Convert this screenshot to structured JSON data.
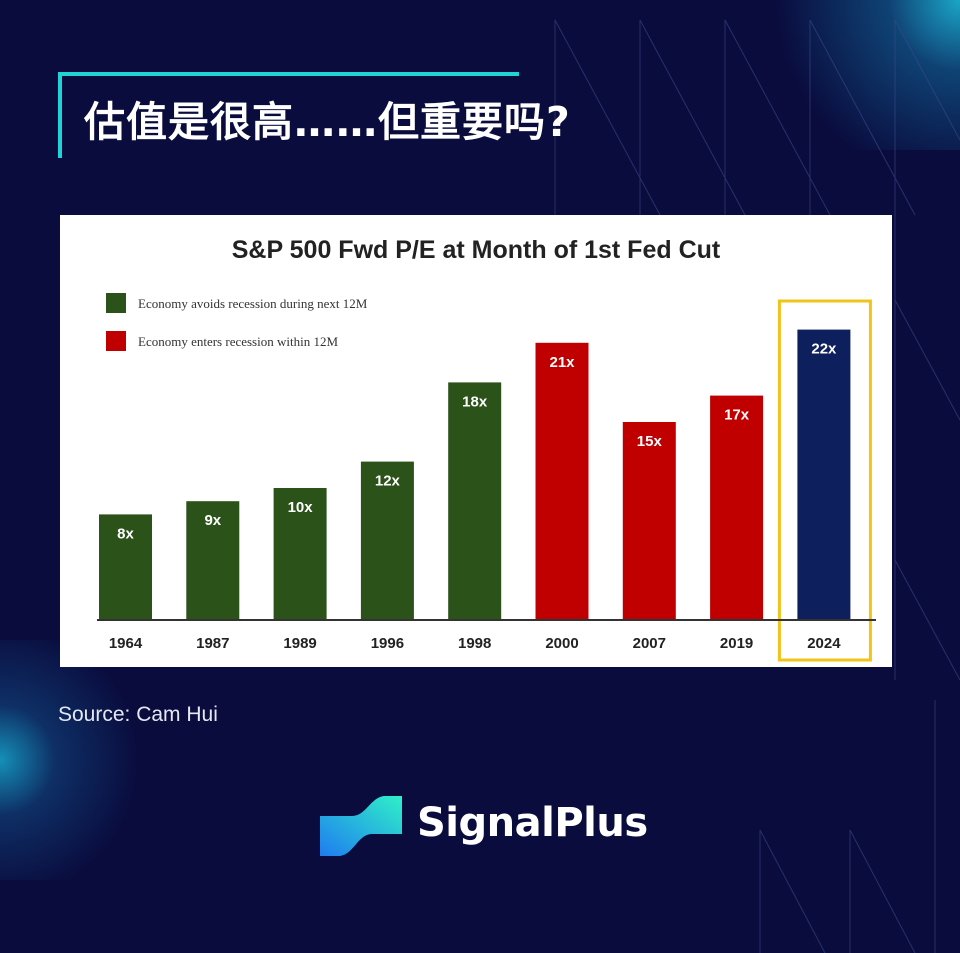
{
  "header": {
    "title": "估值是很高……但重要吗?"
  },
  "source": "Source: Cam Hui",
  "brand": {
    "name": "SignalPlus"
  },
  "colors": {
    "background": "#0a0c3e",
    "accent": "#22d3d6",
    "green": "#2b5219",
    "red": "#c00000",
    "navy": "#0d1f5c",
    "highlight": "#f0c419"
  },
  "chart_data": {
    "type": "bar",
    "title": "S&P 500 Fwd P/E at Month of 1st Fed Cut",
    "categories": [
      "1964",
      "1987",
      "1989",
      "1996",
      "1998",
      "2000",
      "2007",
      "2019",
      "2024"
    ],
    "values": [
      8,
      9,
      10,
      12,
      18,
      21,
      15,
      17,
      22
    ],
    "labels": [
      "8x",
      "9x",
      "10x",
      "12x",
      "18x",
      "21x",
      "15x",
      "17x",
      "22x"
    ],
    "groups": [
      "avoid",
      "avoid",
      "avoid",
      "avoid",
      "avoid",
      "recession",
      "recession",
      "recession",
      "current"
    ],
    "legend": [
      {
        "key": "avoid",
        "label": "Economy avoids recession during next 12M",
        "color": "#2b5219"
      },
      {
        "key": "recession",
        "label": "Economy enters recession within 12M",
        "color": "#c00000"
      }
    ],
    "current_color": "#0d1f5c",
    "highlighted_category": "2024",
    "ylim": [
      0,
      24
    ],
    "grid": false,
    "legend_position": "top-left"
  }
}
